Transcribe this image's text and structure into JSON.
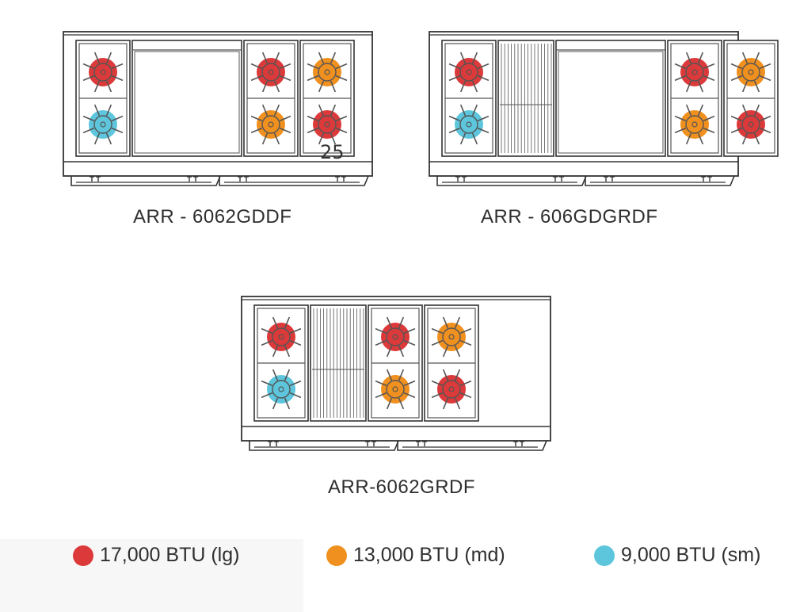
{
  "colors": {
    "large": "#dc3a3a",
    "medium": "#f0901f",
    "small": "#5dc6dc",
    "outline": "#333333",
    "grate": "#555555"
  },
  "ranges": [
    {
      "model": "ARR - 6062GDDF",
      "sections": [
        {
          "type": "burners",
          "top": "large",
          "bottom": "small"
        },
        {
          "type": "griddle"
        },
        {
          "type": "burners",
          "top": "large",
          "bottom": "medium"
        },
        {
          "type": "burners",
          "top": "medium",
          "bottom": "large"
        }
      ],
      "marker": "25"
    },
    {
      "model": "ARR - 606GDGRDF",
      "sections": [
        {
          "type": "burners",
          "top": "large",
          "bottom": "small"
        },
        {
          "type": "grill"
        },
        {
          "type": "griddle"
        },
        {
          "type": "burners",
          "top": "large",
          "bottom": "medium"
        },
        {
          "type": "burners",
          "top": "medium",
          "bottom": "large"
        }
      ]
    },
    {
      "model": "ARR-6062GRDF",
      "sections": [
        {
          "type": "burners",
          "top": "large",
          "bottom": "small"
        },
        {
          "type": "grill"
        },
        {
          "type": "burners",
          "top": "large",
          "bottom": "medium"
        },
        {
          "type": "burners",
          "top": "medium",
          "bottom": "large"
        }
      ]
    }
  ],
  "legend": [
    {
      "key": "large",
      "label": "17,000 BTU (lg)"
    },
    {
      "key": "medium",
      "label": "13,000 BTU (md)"
    },
    {
      "key": "small",
      "label": "9,000 BTU (sm)"
    }
  ]
}
